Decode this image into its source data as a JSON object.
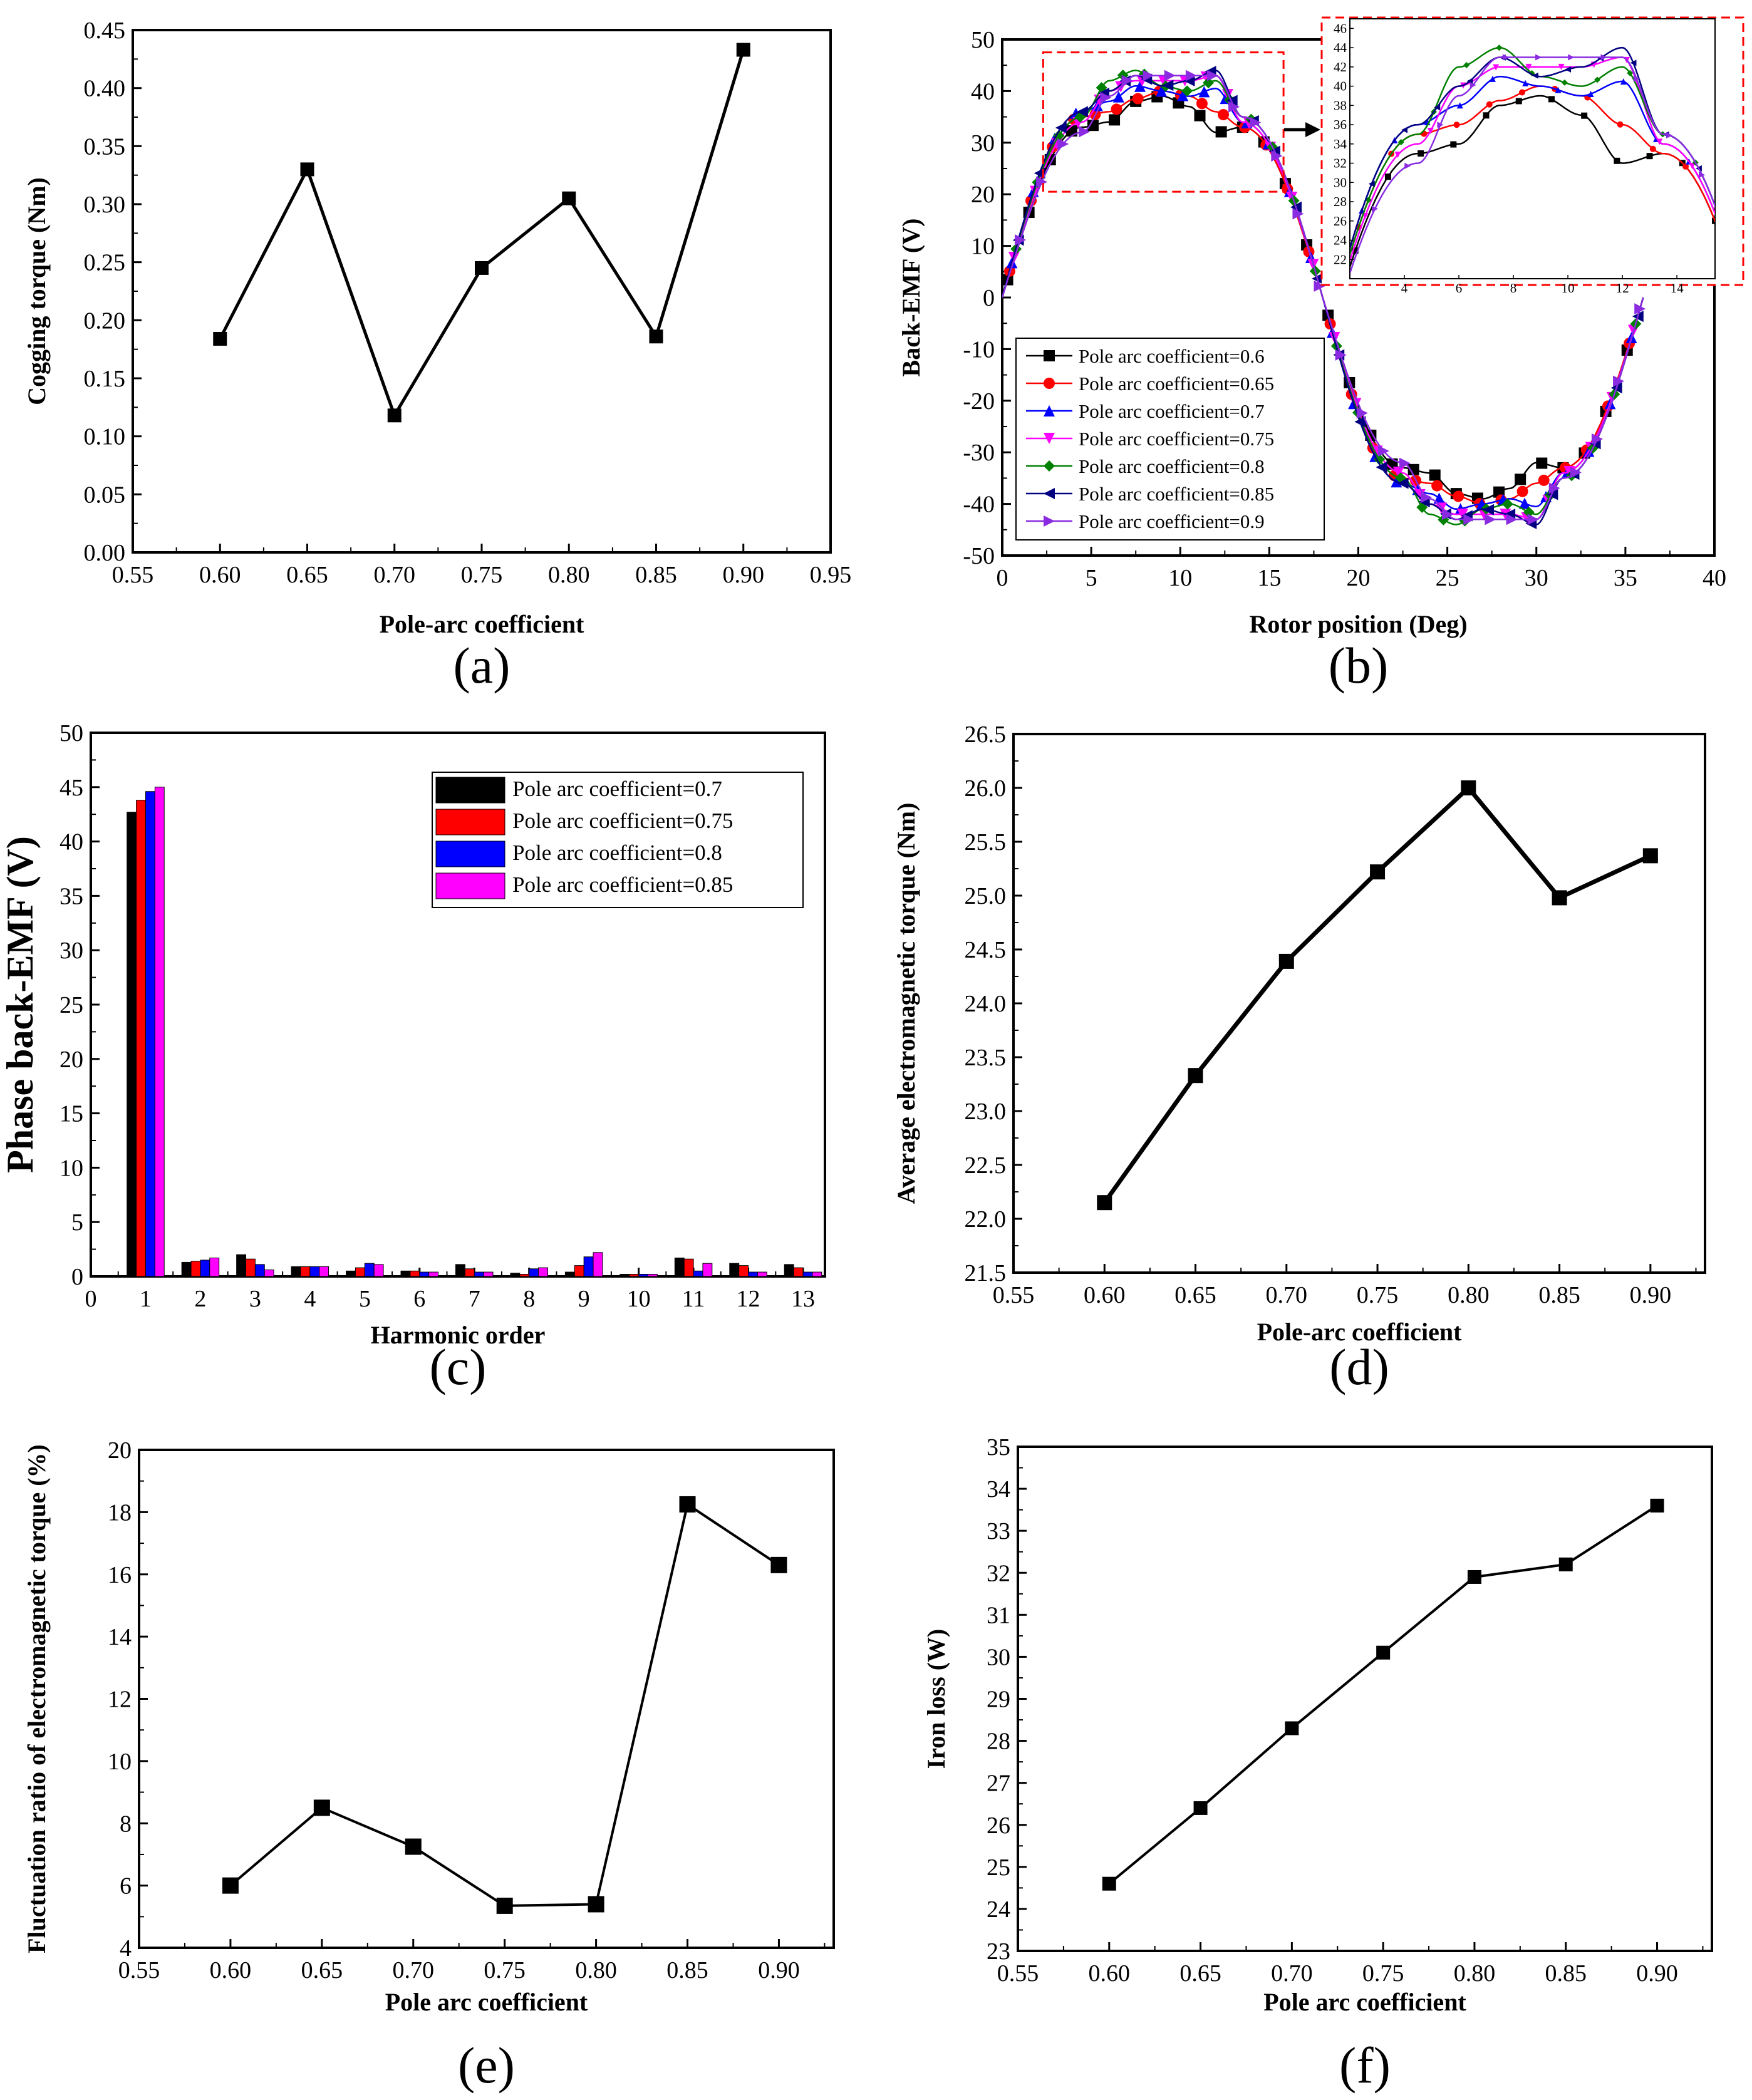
{
  "chart_data": [
    {
      "id": "a",
      "panel_label": "(a)",
      "type": "line",
      "xlabel": "Pole-arc coefficient",
      "ylabel": "Cogging torque (Nm)",
      "xlim": [
        0.55,
        0.95
      ],
      "ylim": [
        0,
        0.45
      ],
      "xticks": [
        "0.55",
        "0.60",
        "0.65",
        "0.70",
        "0.75",
        "0.80",
        "0.85",
        "0.90",
        "0.95"
      ],
      "yticks": [
        "0.00",
        "0.05",
        "0.10",
        "0.15",
        "0.20",
        "0.25",
        "0.30",
        "0.35",
        "0.40",
        "0.45"
      ],
      "x": [
        0.6,
        0.65,
        0.7,
        0.75,
        0.8,
        0.85,
        0.9
      ],
      "y": [
        0.184,
        0.33,
        0.118,
        0.245,
        0.305,
        0.186,
        0.433
      ]
    },
    {
      "id": "b",
      "panel_label": "(b)",
      "type": "line",
      "xlabel": "Rotor position (Deg)",
      "ylabel": "Back-EMF (V)",
      "xlim": [
        0,
        40
      ],
      "ylim": [
        -50,
        50
      ],
      "xticks": [
        "0",
        "5",
        "10",
        "15",
        "20",
        "25",
        "30",
        "35",
        "40"
      ],
      "yticks": [
        "-50",
        "-40",
        "-30",
        "-20",
        "-10",
        "0",
        "10",
        "20",
        "30",
        "40",
        "50"
      ],
      "series": [
        {
          "name": "Pole arc coefficient=0.6",
          "color": "#000000",
          "marker": "square",
          "peak_profile": [
            33,
            34,
            38,
            39,
            37,
            32,
            33
          ]
        },
        {
          "name": "Pole arc coefficient=0.65",
          "color": "#ff0000",
          "marker": "circle",
          "peak_profile": [
            35,
            36,
            38.5,
            40,
            39,
            36,
            33
          ]
        },
        {
          "name": "Pole arc coefficient=0.7",
          "color": "#0000ff",
          "marker": "triangle-up",
          "peak_profile": [
            36,
            38,
            41,
            40,
            39,
            40.5,
            34
          ]
        },
        {
          "name": "Pole arc coefficient=0.75",
          "color": "#ff00ff",
          "marker": "triangle-down",
          "peak_profile": [
            34,
            40,
            42,
            42,
            42,
            43,
            34
          ]
        },
        {
          "name": "Pole arc coefficient=0.8",
          "color": "#008000",
          "marker": "diamond",
          "peak_profile": [
            35,
            42,
            44,
            41,
            40,
            42,
            35
          ]
        },
        {
          "name": "Pole arc coefficient=0.85",
          "color": "#000080",
          "marker": "triangle-left",
          "peak_profile": [
            36,
            40,
            43,
            41,
            42,
            44,
            35
          ]
        },
        {
          "name": "Pole arc coefficient=0.9",
          "color": "#8a2be2",
          "marker": "triangle-right",
          "peak_profile": [
            32,
            39,
            43,
            43,
            43,
            43,
            35
          ]
        }
      ],
      "inset": {
        "xlim": [
          2,
          15.4
        ],
        "ylim": [
          20,
          47
        ],
        "xticks": [
          "4",
          "6",
          "8",
          "10",
          "12",
          "14"
        ],
        "yticks": [
          "22",
          "24",
          "26",
          "28",
          "30",
          "32",
          "34",
          "36",
          "38",
          "40",
          "42",
          "44",
          "46"
        ]
      }
    },
    {
      "id": "c",
      "panel_label": "(c)",
      "type": "bar",
      "xlabel": "Harmonic order",
      "ylabel": "Phase back-EMF (V)",
      "ylim": [
        0,
        50
      ],
      "xticks": [
        "0",
        "1",
        "2",
        "3",
        "4",
        "5",
        "6",
        "7",
        "8",
        "9",
        "10",
        "11",
        "12",
        "13"
      ],
      "yticks": [
        "0",
        "5",
        "10",
        "15",
        "20",
        "25",
        "30",
        "35",
        "40",
        "45",
        "50"
      ],
      "categories": [
        1,
        2,
        3,
        4,
        5,
        6,
        7,
        8,
        9,
        10,
        11,
        12,
        13
      ],
      "series": [
        {
          "name": "Pole arc coefficient=0.7",
          "color": "#000000",
          "values": [
            42.7,
            1.3,
            2.0,
            0.9,
            0.5,
            0.5,
            1.1,
            0.3,
            0.4,
            0.2,
            1.7,
            1.2,
            1.1
          ]
        },
        {
          "name": "Pole arc coefficient=0.75",
          "color": "#ff0000",
          "values": [
            43.8,
            1.4,
            1.6,
            0.9,
            0.8,
            0.5,
            0.7,
            0.2,
            1.0,
            0.2,
            1.6,
            1.0,
            0.8
          ]
        },
        {
          "name": "Pole arc coefficient=0.8",
          "color": "#0000ff",
          "values": [
            44.6,
            1.5,
            1.1,
            0.9,
            1.2,
            0.4,
            0.4,
            0.7,
            1.8,
            0.2,
            0.5,
            0.4,
            0.4
          ]
        },
        {
          "name": "Pole arc coefficient=0.85",
          "color": "#ff00ff",
          "values": [
            45.0,
            1.7,
            0.6,
            0.9,
            1.1,
            0.4,
            0.4,
            0.8,
            2.2,
            0.2,
            1.2,
            0.4,
            0.4
          ]
        }
      ]
    },
    {
      "id": "d",
      "panel_label": "(d)",
      "type": "line",
      "xlabel": "Pole-arc coefficient",
      "ylabel": "Average electromagnetic torque (Nm)",
      "xlim": [
        0.55,
        0.93
      ],
      "ylim": [
        21.5,
        26.5
      ],
      "xticks": [
        "0.55",
        "0.60",
        "0.65",
        "0.70",
        "0.75",
        "0.80",
        "0.85",
        "0.90"
      ],
      "yticks": [
        "21.5",
        "22.0",
        "22.5",
        "23.0",
        "23.5",
        "24.0",
        "24.5",
        "25.0",
        "25.5",
        "26.0",
        "26.5"
      ],
      "x": [
        0.6,
        0.65,
        0.7,
        0.75,
        0.8,
        0.85,
        0.9
      ],
      "y": [
        22.15,
        23.33,
        24.39,
        25.22,
        26.0,
        24.98,
        25.37
      ]
    },
    {
      "id": "e",
      "panel_label": "(e)",
      "type": "line",
      "xlabel": "Pole arc coefficient",
      "ylabel": "Fluctuation ratio of electromagnetic torque (%)",
      "xlim": [
        0.55,
        0.93
      ],
      "ylim": [
        4,
        20
      ],
      "xticks": [
        "0.55",
        "0.60",
        "0.65",
        "0.70",
        "0.75",
        "0.80",
        "0.85",
        "0.90"
      ],
      "yticks": [
        "4",
        "6",
        "8",
        "10",
        "12",
        "14",
        "16",
        "18",
        "20"
      ],
      "x": [
        0.6,
        0.65,
        0.7,
        0.75,
        0.8,
        0.85,
        0.9
      ],
      "y": [
        6.0,
        8.5,
        7.25,
        5.35,
        5.4,
        18.25,
        16.3
      ]
    },
    {
      "id": "f",
      "panel_label": "(f)",
      "type": "line",
      "xlabel": "Pole arc coefficient",
      "ylabel": "Iron loss (W)",
      "xlim": [
        0.55,
        0.93
      ],
      "ylim": [
        23,
        35
      ],
      "xticks": [
        "0.55",
        "0.60",
        "0.65",
        "0.70",
        "0.75",
        "0.80",
        "0.85",
        "0.90"
      ],
      "yticks": [
        "23",
        "24",
        "25",
        "26",
        "27",
        "28",
        "29",
        "30",
        "31",
        "32",
        "33",
        "34",
        "35"
      ],
      "x": [
        0.6,
        0.65,
        0.7,
        0.75,
        0.8,
        0.85,
        0.9
      ],
      "y": [
        24.6,
        26.4,
        28.3,
        30.1,
        31.9,
        32.2,
        33.6
      ]
    }
  ]
}
